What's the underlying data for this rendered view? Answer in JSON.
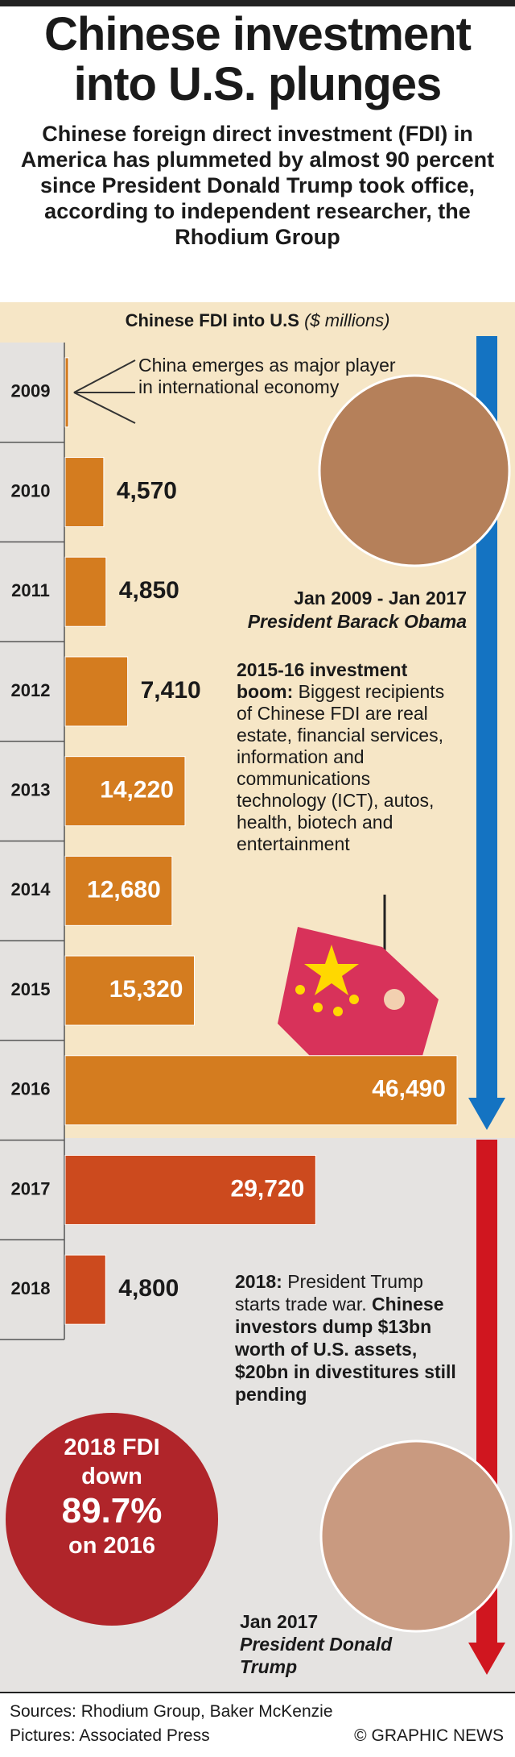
{
  "header": {
    "title": "Chinese investment into U.S. plunges",
    "subtitle": "Chinese foreign direct investment (FDI) in America has plummeted by almost 90 percent since President Donald Trump took office, according to independent researcher, the Rhodium Group"
  },
  "chart_data": {
    "type": "bar",
    "orientation": "horizontal",
    "title": "Chinese FDI into U.S",
    "unit": "($ millions)",
    "categories": [
      "2009",
      "2010",
      "2011",
      "2012",
      "2013",
      "2014",
      "2015",
      "2016",
      "2017",
      "2018"
    ],
    "values": [
      400,
      4570,
      4850,
      7410,
      14220,
      12680,
      15320,
      46490,
      29720,
      4800
    ],
    "value_labels": [
      null,
      "4,570",
      "4,850",
      "7,410",
      "14,220",
      "12,680",
      "15,320",
      "46,490",
      "29,720",
      "4,800"
    ],
    "colors": [
      "#d47c1f",
      "#d47c1f",
      "#d47c1f",
      "#d47c1f",
      "#d47c1f",
      "#d47c1f",
      "#d47c1f",
      "#d47c1f",
      "#cc4a1e",
      "#cc4a1e"
    ]
  },
  "annotations": {
    "china_emerges": "China emerges as major player in international economy",
    "obama": {
      "dates": "Jan 2009 - Jan 2017",
      "name": "President Barack Obama"
    },
    "boom": {
      "lead": "2015-16 investment boom:",
      "text": "Biggest recipients of Chinese FDI are real estate, financial services, information and communications technology (ICT), autos, health, biotech and entertainment"
    },
    "trump_2018": {
      "lead": "2018:",
      "text": "President Trump starts trade war.",
      "bold": "Chinese investors dump $13bn worth of U.S. assets, $20bn in divestitures still pending"
    },
    "trump": {
      "dates": "Jan 2017",
      "name": "President Donald Trump"
    }
  },
  "badge": [
    "2018 FDI",
    "down",
    "89.7%",
    "on 2016"
  ],
  "footer": {
    "sources": "Sources: Rhodium Group, Baker McKenzie",
    "pictures": "Pictures: Associated Press",
    "credit": "© GRAPHIC NEWS"
  }
}
